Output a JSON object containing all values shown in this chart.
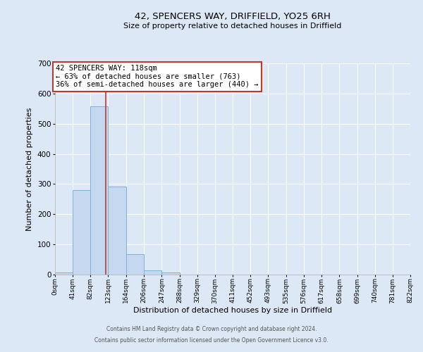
{
  "title": "42, SPENCERS WAY, DRIFFIELD, YO25 6RH",
  "subtitle": "Size of property relative to detached houses in Driffield",
  "xlabel": "Distribution of detached houses by size in Driffield",
  "ylabel": "Number of detached properties",
  "bin_edges": [
    0,
    41,
    82,
    123,
    164,
    206,
    247,
    288,
    329,
    370,
    411,
    452,
    493,
    535,
    576,
    617,
    658,
    699,
    740,
    781,
    822
  ],
  "bin_counts": [
    7,
    280,
    557,
    292,
    68,
    14,
    6,
    0,
    0,
    0,
    0,
    0,
    0,
    0,
    0,
    0,
    0,
    0,
    0,
    0
  ],
  "bar_color": "#c5d8f0",
  "bar_edge_color": "#7ab4d8",
  "property_line_x": 118,
  "property_line_color": "#c0392b",
  "ylim": [
    0,
    700
  ],
  "yticks": [
    0,
    100,
    200,
    300,
    400,
    500,
    600,
    700
  ],
  "annotation_title": "42 SPENCERS WAY: 118sqm",
  "annotation_line1": "← 63% of detached houses are smaller (763)",
  "annotation_line2": "36% of semi-detached houses are larger (440) →",
  "annotation_box_facecolor": "#ffffff",
  "annotation_box_edgecolor": "#c0392b",
  "footer_line1": "Contains HM Land Registry data © Crown copyright and database right 2024.",
  "footer_line2": "Contains public sector information licensed under the Open Government Licence v3.0.",
  "background_color": "#dce8f5",
  "grid_color": "#ffffff",
  "tick_labels": [
    "0sqm",
    "41sqm",
    "82sqm",
    "123sqm",
    "164sqm",
    "206sqm",
    "247sqm",
    "288sqm",
    "329sqm",
    "370sqm",
    "411sqm",
    "452sqm",
    "493sqm",
    "535sqm",
    "576sqm",
    "617sqm",
    "658sqm",
    "699sqm",
    "740sqm",
    "781sqm",
    "822sqm"
  ]
}
